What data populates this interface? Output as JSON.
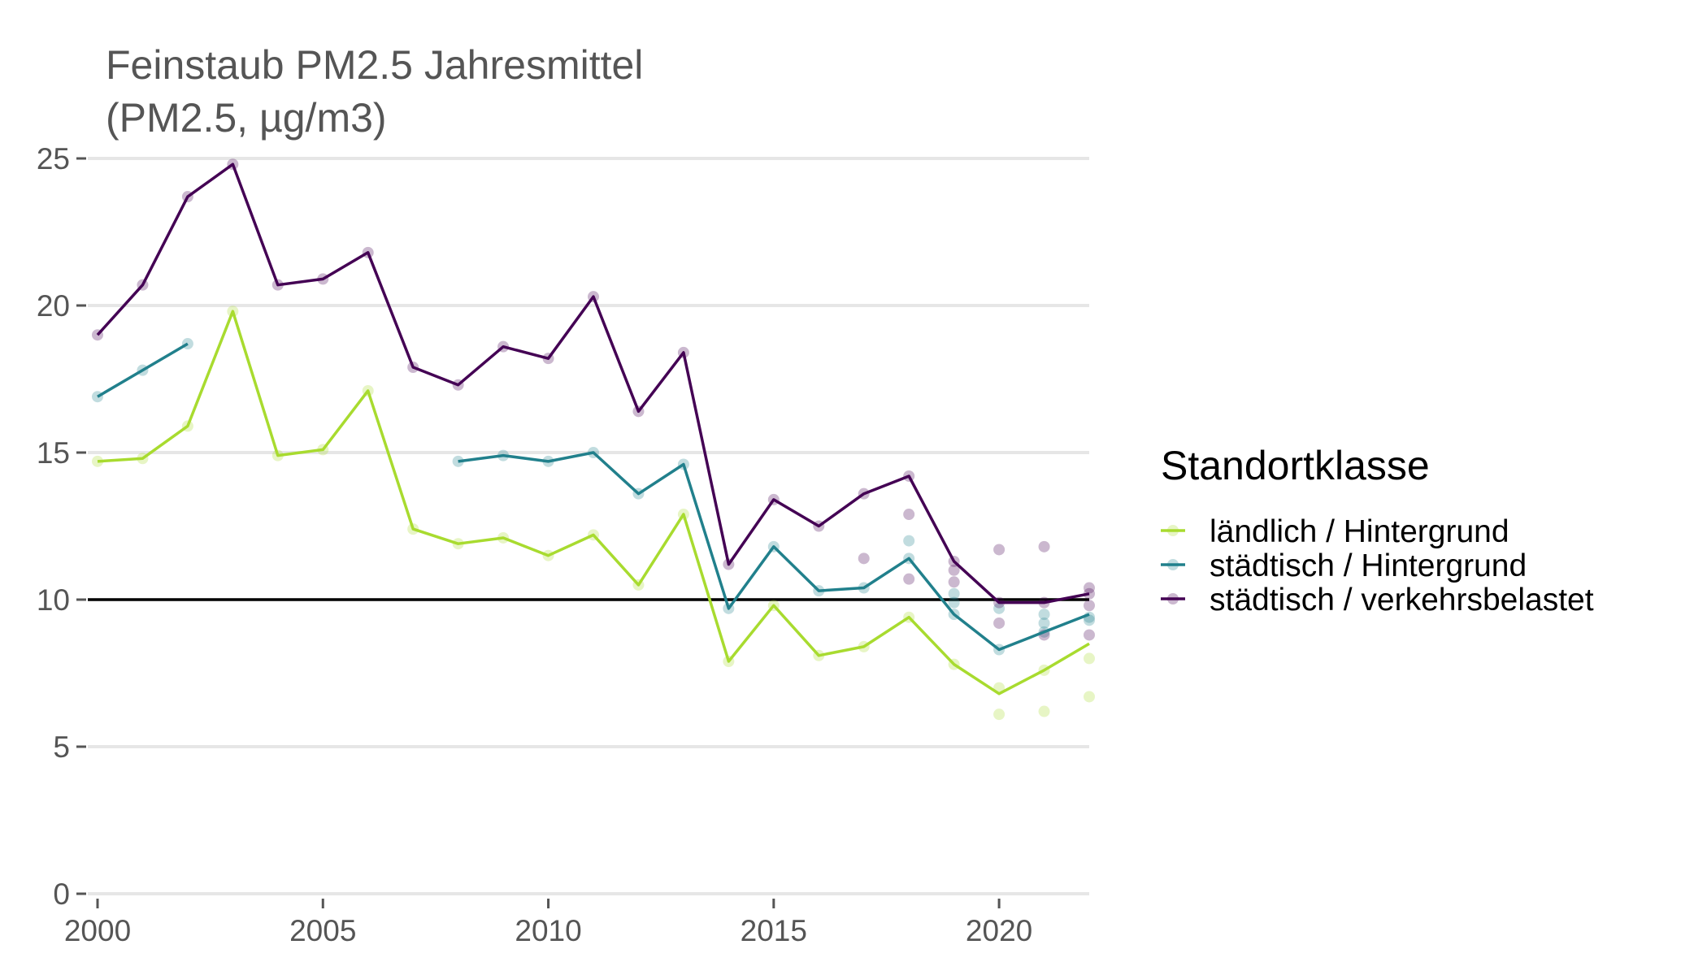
{
  "chart_data": {
    "type": "line",
    "title": "Feinstaub PM2.5 Jahresmittel",
    "subtitle": "(PM2.5, µg/m3)",
    "xlim": [
      2000,
      2022
    ],
    "ylim": [
      0,
      25
    ],
    "x_ticks": [
      "2000",
      "2005",
      "2010",
      "2015",
      "2020"
    ],
    "y_ticks": [
      "0",
      "5",
      "10",
      "15",
      "20",
      "25"
    ],
    "grid": "horizontal",
    "reference_line": 10,
    "legend": {
      "title": "Standortklasse",
      "position": "right",
      "items": [
        "ländlich / Hintergrund",
        "städtisch / Hintergrund",
        "städtisch / verkehrsbelastet"
      ]
    },
    "series": [
      {
        "name": "ländlich / Hintergrund",
        "color": "#a8db2f",
        "line": [
          [
            2000,
            14.7
          ],
          [
            2001,
            14.8
          ],
          [
            2002,
            15.9
          ],
          [
            2003,
            19.8
          ],
          [
            2004,
            14.9
          ],
          [
            2005,
            15.1
          ],
          [
            2006,
            17.1
          ],
          [
            2007,
            12.4
          ],
          [
            2008,
            11.9
          ],
          [
            2009,
            12.1
          ],
          [
            2010,
            11.5
          ],
          [
            2011,
            12.2
          ],
          [
            2012,
            10.5
          ],
          [
            2013,
            12.9
          ],
          [
            2014,
            7.9
          ],
          [
            2015,
            9.8
          ],
          [
            2016,
            8.1
          ],
          [
            2017,
            8.4
          ],
          [
            2018,
            9.4
          ],
          [
            2019,
            7.8
          ],
          [
            2020,
            6.8
          ],
          [
            2021,
            7.6
          ],
          [
            2022,
            8.5
          ]
        ],
        "points": [
          [
            2000,
            14.7
          ],
          [
            2001,
            14.8
          ],
          [
            2002,
            15.9
          ],
          [
            2003,
            19.8
          ],
          [
            2004,
            14.9
          ],
          [
            2005,
            15.1
          ],
          [
            2006,
            17.1
          ],
          [
            2007,
            12.4
          ],
          [
            2008,
            11.9
          ],
          [
            2009,
            12.1
          ],
          [
            2010,
            11.5
          ],
          [
            2011,
            12.2
          ],
          [
            2012,
            10.5
          ],
          [
            2013,
            12.9
          ],
          [
            2014,
            7.9
          ],
          [
            2015,
            9.8
          ],
          [
            2016,
            8.1
          ],
          [
            2017,
            8.4
          ],
          [
            2018,
            9.4
          ],
          [
            2019,
            7.8
          ],
          [
            2020,
            7.0
          ],
          [
            2020,
            6.1
          ],
          [
            2021,
            7.6
          ],
          [
            2021,
            6.2
          ],
          [
            2022,
            8.0
          ],
          [
            2022,
            6.7
          ]
        ]
      },
      {
        "name": "städtisch / Hintergrund",
        "color": "#21808c",
        "line": [
          [
            2000,
            16.9
          ],
          [
            2001,
            17.8
          ],
          [
            2002,
            18.7
          ],
          null,
          [
            2008,
            14.7
          ],
          [
            2009,
            14.9
          ],
          [
            2010,
            14.7
          ],
          [
            2011,
            15.0
          ],
          [
            2012,
            13.6
          ],
          [
            2013,
            14.6
          ],
          [
            2014,
            9.7
          ],
          [
            2015,
            11.8
          ],
          [
            2016,
            10.3
          ],
          [
            2017,
            10.4
          ],
          [
            2018,
            11.4
          ],
          [
            2019,
            9.5
          ],
          [
            2020,
            8.3
          ],
          [
            2021,
            8.9
          ],
          [
            2022,
            9.5
          ]
        ],
        "points": [
          [
            2000,
            16.9
          ],
          [
            2001,
            17.8
          ],
          [
            2002,
            18.7
          ],
          [
            2008,
            14.7
          ],
          [
            2009,
            14.9
          ],
          [
            2010,
            14.7
          ],
          [
            2011,
            15.0
          ],
          [
            2012,
            13.6
          ],
          [
            2013,
            14.6
          ],
          [
            2014,
            9.7
          ],
          [
            2015,
            11.8
          ],
          [
            2016,
            10.3
          ],
          [
            2017,
            10.4
          ],
          [
            2018,
            11.4
          ],
          [
            2018,
            12.0
          ],
          [
            2019,
            10.2
          ],
          [
            2019,
            9.9
          ],
          [
            2019,
            9.5
          ],
          [
            2020,
            9.7
          ],
          [
            2020,
            8.3
          ],
          [
            2021,
            9.5
          ],
          [
            2021,
            9.2
          ],
          [
            2021,
            8.9
          ],
          [
            2022,
            9.4
          ],
          [
            2022,
            9.3
          ]
        ]
      },
      {
        "name": "städtisch / verkehrsbelastet",
        "color": "#440154",
        "line": [
          [
            2000,
            19.0
          ],
          [
            2001,
            20.7
          ],
          [
            2002,
            23.7
          ],
          [
            2003,
            24.8
          ],
          [
            2004,
            20.7
          ],
          [
            2005,
            20.9
          ],
          [
            2006,
            21.8
          ],
          [
            2007,
            17.9
          ],
          [
            2008,
            17.3
          ],
          [
            2009,
            18.6
          ],
          [
            2010,
            18.2
          ],
          [
            2011,
            20.3
          ],
          [
            2012,
            16.4
          ],
          [
            2013,
            18.4
          ],
          [
            2014,
            11.2
          ],
          [
            2015,
            13.4
          ],
          [
            2016,
            12.5
          ],
          [
            2017,
            13.6
          ],
          [
            2018,
            14.2
          ],
          [
            2019,
            11.3
          ],
          [
            2020,
            9.9
          ],
          [
            2021,
            9.9
          ],
          [
            2022,
            10.2
          ]
        ],
        "points": [
          [
            2000,
            19.0
          ],
          [
            2001,
            20.7
          ],
          [
            2002,
            23.7
          ],
          [
            2003,
            24.8
          ],
          [
            2004,
            20.7
          ],
          [
            2005,
            20.9
          ],
          [
            2006,
            21.8
          ],
          [
            2007,
            17.9
          ],
          [
            2008,
            17.3
          ],
          [
            2009,
            18.6
          ],
          [
            2010,
            18.2
          ],
          [
            2011,
            20.3
          ],
          [
            2012,
            16.4
          ],
          [
            2013,
            18.4
          ],
          [
            2014,
            11.2
          ],
          [
            2015,
            13.4
          ],
          [
            2016,
            12.5
          ],
          [
            2017,
            13.6
          ],
          [
            2017,
            11.4
          ],
          [
            2018,
            14.2
          ],
          [
            2018,
            12.9
          ],
          [
            2018,
            10.7
          ],
          [
            2019,
            11.3
          ],
          [
            2019,
            11.0
          ],
          [
            2019,
            10.6
          ],
          [
            2020,
            11.7
          ],
          [
            2020,
            9.9
          ],
          [
            2020,
            9.2
          ],
          [
            2021,
            11.8
          ],
          [
            2021,
            9.9
          ],
          [
            2021,
            8.8
          ],
          [
            2022,
            10.4
          ],
          [
            2022,
            10.2
          ],
          [
            2022,
            9.8
          ],
          [
            2022,
            8.8
          ]
        ]
      }
    ]
  }
}
